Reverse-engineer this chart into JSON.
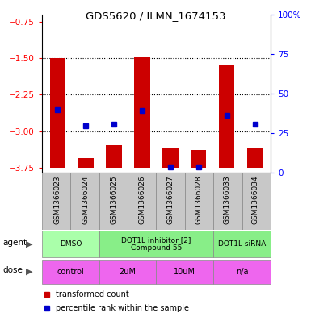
{
  "title": "GDS5620 / ILMN_1674153",
  "samples": [
    "GSM1366023",
    "GSM1366024",
    "GSM1366025",
    "GSM1366026",
    "GSM1366027",
    "GSM1366028",
    "GSM1366033",
    "GSM1366034"
  ],
  "bar_bottoms": [
    -3.75,
    -3.75,
    -3.75,
    -3.75,
    -3.75,
    -3.75,
    -3.75,
    -3.75
  ],
  "bar_tops": [
    -1.5,
    -3.55,
    -3.28,
    -1.48,
    -3.33,
    -3.38,
    -1.65,
    -3.33
  ],
  "percentile_values": [
    -2.55,
    -2.88,
    -2.85,
    -2.58,
    -3.73,
    -3.73,
    -2.68,
    -2.86
  ],
  "ylim_left": [
    -3.85,
    -0.6
  ],
  "ylim_right": [
    0,
    100
  ],
  "yticks_left": [
    -3.75,
    -3.0,
    -2.25,
    -1.5,
    -0.75
  ],
  "yticks_right": [
    0,
    25,
    50,
    75,
    100
  ],
  "hlines": [
    -3.0,
    -2.25,
    -1.5
  ],
  "bar_color": "#cc0000",
  "dot_color": "#0000cc",
  "agent_groups": [
    {
      "label": "DMSO",
      "start": 0,
      "end": 2,
      "color": "#aaffaa"
    },
    {
      "label": "DOT1L inhibitor [2]\nCompound 55",
      "start": 2,
      "end": 6,
      "color": "#88ee88"
    },
    {
      "label": "DOT1L siRNA",
      "start": 6,
      "end": 8,
      "color": "#88ee88"
    }
  ],
  "dose_groups": [
    {
      "label": "control",
      "start": 0,
      "end": 2,
      "color": "#ee66ee"
    },
    {
      "label": "2uM",
      "start": 2,
      "end": 4,
      "color": "#ee66ee"
    },
    {
      "label": "10uM",
      "start": 4,
      "end": 6,
      "color": "#ee66ee"
    },
    {
      "label": "n/a",
      "start": 6,
      "end": 8,
      "color": "#ee66ee"
    }
  ],
  "legend_items": [
    {
      "color": "#cc0000",
      "label": "transformed count"
    },
    {
      "color": "#0000cc",
      "label": "percentile rank within the sample"
    }
  ],
  "bg_color": "#ffffff",
  "grid_color": "#c8c8c8",
  "sample_bg_color": "#c8c8c8"
}
